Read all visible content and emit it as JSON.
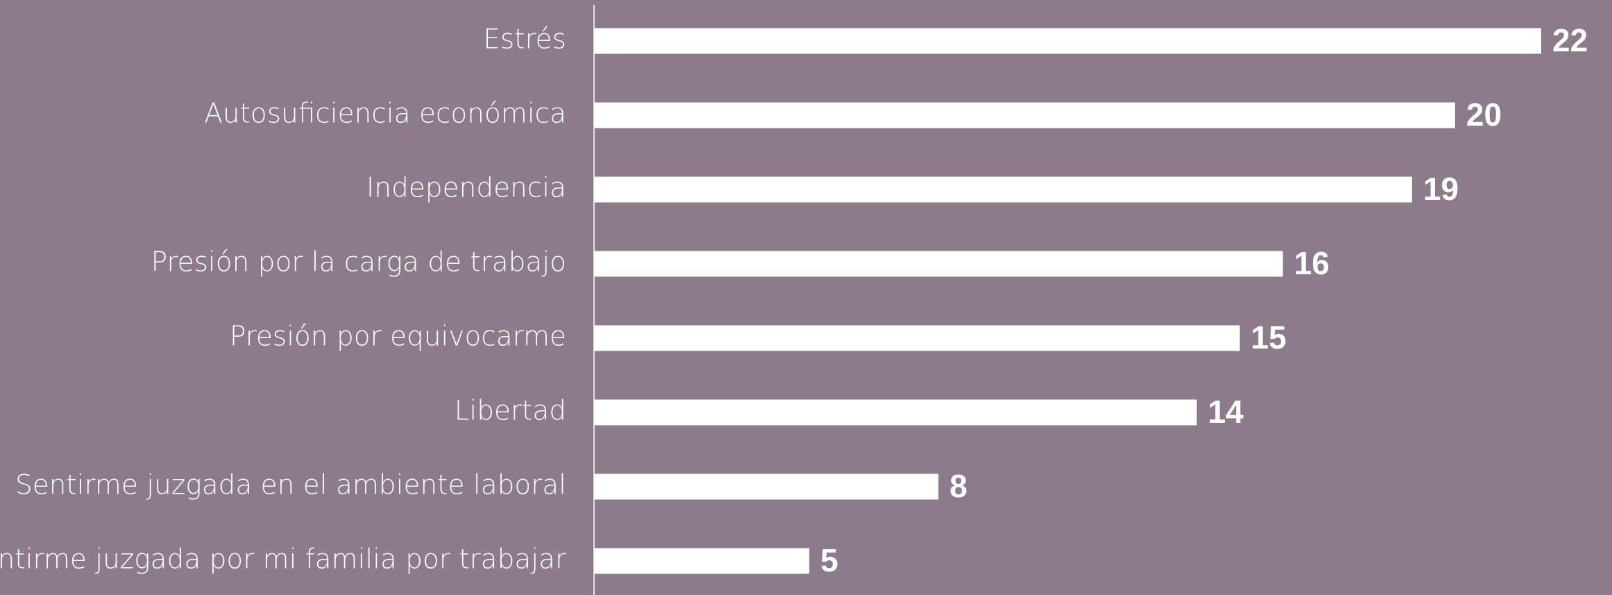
{
  "chart_data": {
    "type": "bar",
    "orientation": "horizontal",
    "categories": [
      "Estrés",
      "Autosuficiencia económica",
      "Independencia",
      "Presión por la carga de trabajo",
      "Presión por equivocarme",
      "Libertad",
      "Sentirme juzgada en el ambiente laboral",
      "Sentirme juzgada por mi familia por trabajar"
    ],
    "values": [
      22,
      20,
      19,
      16,
      15,
      14,
      8,
      5
    ],
    "color": "#ffffff",
    "background": "#8b7b8b"
  }
}
